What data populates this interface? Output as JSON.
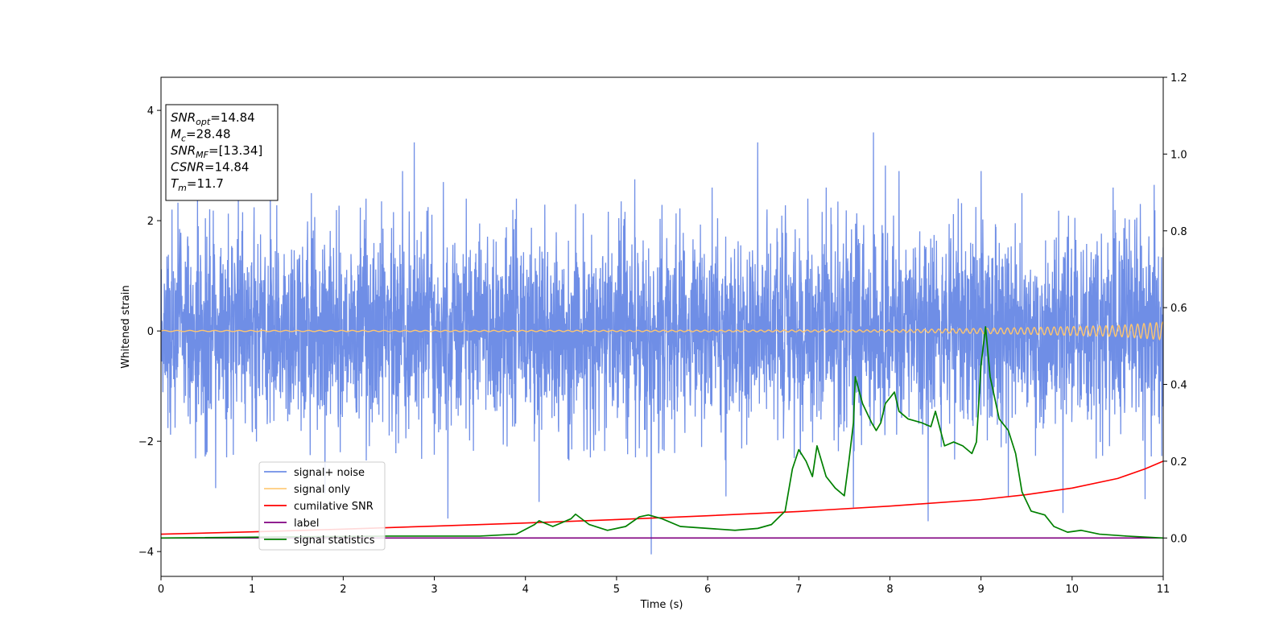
{
  "chart_data": {
    "type": "line",
    "xlabel": "Time (s)",
    "ylabel": "Whitened strain",
    "xlim": [
      0,
      11
    ],
    "ylim": [
      -4.45,
      4.6
    ],
    "y2lim": [
      -0.1,
      1.2
    ],
    "xticks": [
      0,
      1,
      2,
      3,
      4,
      5,
      6,
      7,
      8,
      9,
      10,
      11
    ],
    "yticks": [
      -4,
      -2,
      0,
      2,
      4
    ],
    "y2ticks": [
      "0.0",
      "0.2",
      "0.4",
      "0.6",
      "0.8",
      "1.0",
      "1.2"
    ],
    "grid": false,
    "legend_position": "lower-left",
    "annotation": [
      {
        "name": "SNR",
        "sub": "opt",
        "value": "=14.84"
      },
      {
        "name": "M",
        "sub": "c",
        "value": "=28.48"
      },
      {
        "name": "SNR",
        "sub": "MF",
        "value": "=[13.34]"
      },
      {
        "name": "CSNR",
        "sub": "",
        "value": "=14.84"
      },
      {
        "name": "T",
        "sub": "m",
        "value": "=11.7"
      }
    ],
    "series": [
      {
        "name": "signal+ noise",
        "color": "#6f8ee6",
        "axis": "left",
        "envelope": {
          "typical_band": [
            -1.5,
            1.5
          ],
          "min": -4.05,
          "max": 3.6
        },
        "peaks": [
          [
            0.12,
            2.2
          ],
          [
            0.4,
            2.45
          ],
          [
            0.6,
            -2.85
          ],
          [
            0.85,
            2.5
          ],
          [
            1.2,
            2.6
          ],
          [
            1.65,
            2.5
          ],
          [
            1.8,
            -2.95
          ],
          [
            2.25,
            2.4
          ],
          [
            2.65,
            2.9
          ],
          [
            2.78,
            3.42
          ],
          [
            3.1,
            2.7
          ],
          [
            3.35,
            2.4
          ],
          [
            3.15,
            -3.4
          ],
          [
            3.9,
            2.4
          ],
          [
            4.15,
            -3.1
          ],
          [
            4.55,
            2.3
          ],
          [
            5.05,
            2.35
          ],
          [
            5.2,
            2.75
          ],
          [
            5.38,
            -4.05
          ],
          [
            6.05,
            2.6
          ],
          [
            6.2,
            -3.0
          ],
          [
            6.55,
            3.42
          ],
          [
            7.1,
            2.4
          ],
          [
            7.3,
            2.6
          ],
          [
            7.6,
            -3.2
          ],
          [
            7.82,
            3.6
          ],
          [
            7.95,
            3.0
          ],
          [
            8.1,
            2.9
          ],
          [
            8.42,
            -3.45
          ],
          [
            8.75,
            2.4
          ],
          [
            9.0,
            2.9
          ],
          [
            9.3,
            -3.0
          ],
          [
            9.45,
            2.5
          ],
          [
            9.9,
            -3.3
          ],
          [
            10.45,
            2.6
          ],
          [
            10.8,
            -3.05
          ],
          [
            10.9,
            2.65
          ]
        ]
      },
      {
        "name": "signal only",
        "color": "#ffc66e",
        "axis": "left",
        "amplitude": [
          [
            0,
            0.01
          ],
          [
            5,
            0.012
          ],
          [
            8,
            0.02
          ],
          [
            9.5,
            0.06
          ],
          [
            10.5,
            0.1
          ],
          [
            11,
            0.16
          ]
        ]
      },
      {
        "name": "cumilative SNR",
        "color": "#ff0000",
        "axis": "right",
        "x": [
          0,
          1,
          2,
          3,
          4,
          5,
          6,
          7,
          8,
          9,
          9.5,
          10,
          10.5,
          10.8,
          11
        ],
        "y": [
          0.01,
          0.016,
          0.023,
          0.031,
          0.039,
          0.048,
          0.058,
          0.069,
          0.083,
          0.1,
          0.113,
          0.13,
          0.155,
          0.18,
          0.2
        ]
      },
      {
        "name": "label",
        "color": "#800080",
        "axis": "right",
        "x": [
          0,
          11
        ],
        "y": [
          0,
          0
        ]
      },
      {
        "name": "signal statistics",
        "color": "#008000",
        "axis": "right",
        "x": [
          0,
          2.5,
          3.5,
          3.9,
          4.1,
          4.15,
          4.3,
          4.5,
          4.55,
          4.7,
          4.9,
          5.1,
          5.25,
          5.35,
          5.5,
          5.7,
          6.0,
          6.3,
          6.55,
          6.7,
          6.85,
          6.93,
          7.0,
          7.08,
          7.15,
          7.2,
          7.3,
          7.4,
          7.5,
          7.55,
          7.6,
          7.62,
          7.7,
          7.8,
          7.85,
          7.9,
          7.95,
          8.05,
          8.1,
          8.2,
          8.35,
          8.45,
          8.5,
          8.6,
          8.7,
          8.8,
          8.9,
          8.95,
          9.0,
          9.05,
          9.1,
          9.2,
          9.3,
          9.38,
          9.45,
          9.55,
          9.7,
          9.8,
          9.95,
          10.1,
          10.3,
          10.6,
          11.0
        ],
        "y": [
          0,
          0.005,
          0.005,
          0.01,
          0.035,
          0.045,
          0.03,
          0.05,
          0.062,
          0.035,
          0.02,
          0.03,
          0.055,
          0.06,
          0.05,
          0.03,
          0.025,
          0.02,
          0.025,
          0.035,
          0.07,
          0.18,
          0.23,
          0.2,
          0.16,
          0.24,
          0.16,
          0.13,
          0.11,
          0.2,
          0.3,
          0.42,
          0.35,
          0.3,
          0.28,
          0.3,
          0.35,
          0.38,
          0.33,
          0.31,
          0.3,
          0.29,
          0.33,
          0.24,
          0.25,
          0.24,
          0.22,
          0.25,
          0.45,
          0.55,
          0.42,
          0.31,
          0.28,
          0.22,
          0.12,
          0.07,
          0.06,
          0.03,
          0.015,
          0.02,
          0.01,
          0.005,
          0
        ]
      }
    ]
  }
}
